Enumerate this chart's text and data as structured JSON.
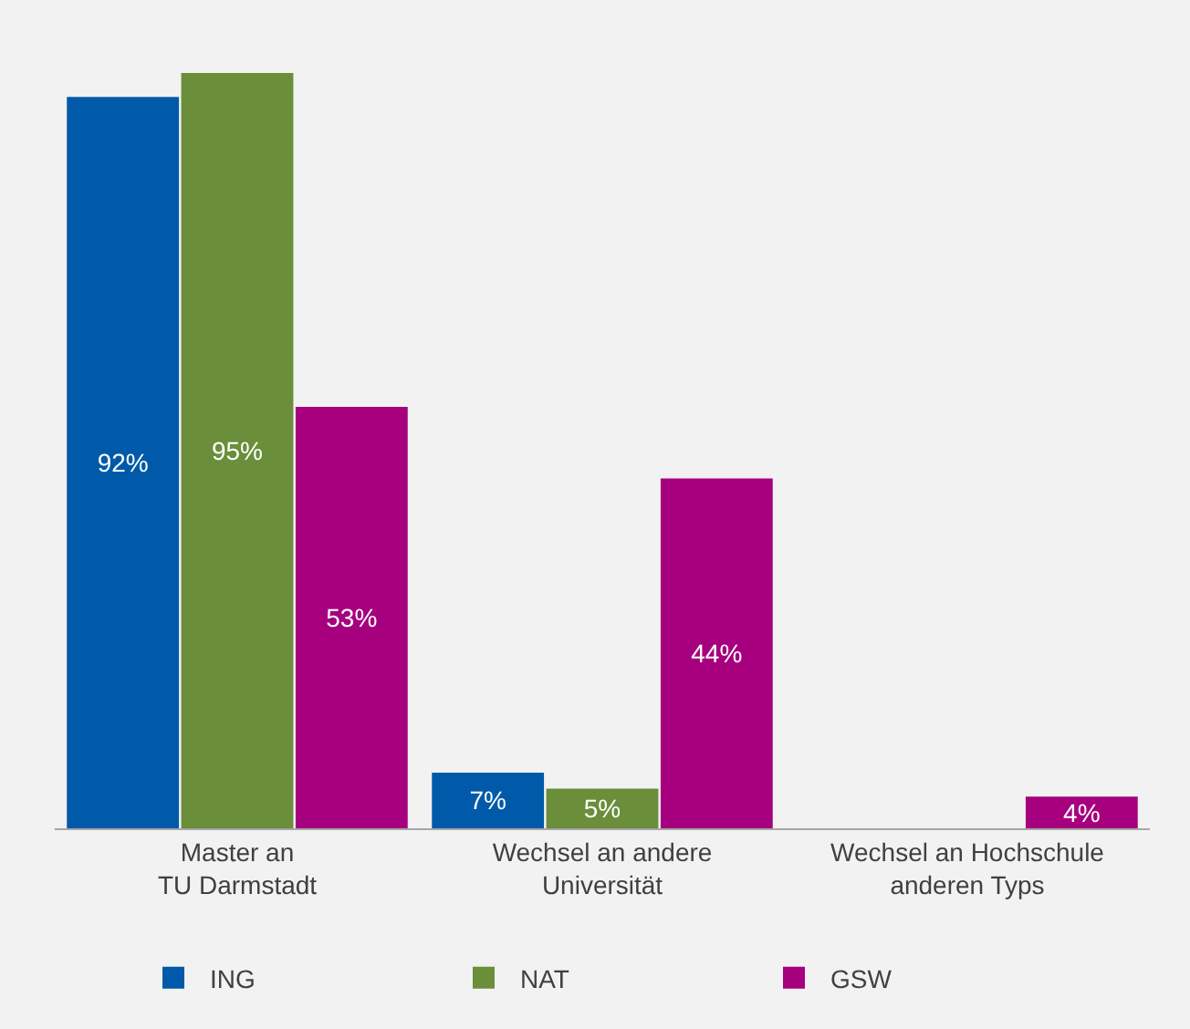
{
  "chart_data": {
    "type": "bar",
    "categories": [
      "Master an\nTU Darmstadt",
      "Wechsel an andere\nUniversität",
      "Wechsel an Hochschule\nanderen Typs"
    ],
    "series": [
      {
        "name": "ING",
        "color": "#005aa9",
        "values": [
          92,
          7,
          null
        ],
        "value_labels": [
          "92%",
          "7%",
          null
        ]
      },
      {
        "name": "NAT",
        "color": "#6a8e3a",
        "values": [
          95,
          5,
          null
        ],
        "value_labels": [
          "95%",
          "5%",
          null
        ]
      },
      {
        "name": "GSW",
        "color": "#a6007e",
        "values": [
          53,
          44,
          4
        ],
        "value_labels": [
          "53%",
          "44%",
          "4%"
        ]
      }
    ],
    "legend": "bottom",
    "grid": false
  }
}
